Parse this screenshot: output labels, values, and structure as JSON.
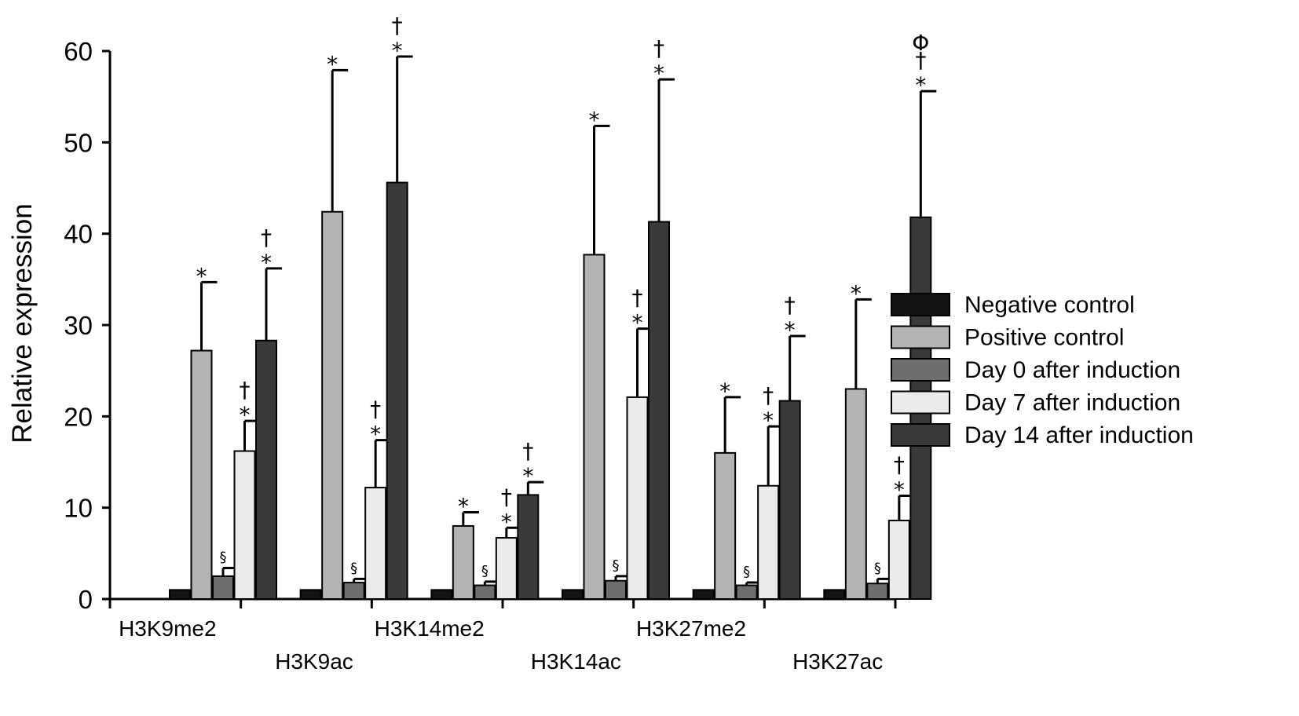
{
  "chart_data": {
    "type": "bar",
    "ylabel": "Relative expression",
    "ylim": [
      0,
      60
    ],
    "yticks": [
      "0",
      "10",
      "20",
      "30",
      "40",
      "50",
      "60"
    ],
    "grid": false,
    "legend_position": "right",
    "categories": [
      "H3K9me2",
      "H3K9ac",
      "H3K14me2",
      "H3K14ac",
      "H3K27me2",
      "H3K27ac"
    ],
    "colors": {
      "Negative control": "#141414",
      "Positive control": "#b4b4b4",
      "Day 0 after induction": "#6e6e6e",
      "Day 7 after induction": "#ebebeb",
      "Day 14 after induction": "#3a3a3a"
    },
    "series": [
      {
        "name": "Negative control",
        "values": [
          1,
          1,
          1,
          1,
          1,
          1
        ],
        "errors": [
          0,
          0,
          0,
          0,
          0,
          0
        ],
        "annotations": [
          [],
          [],
          [],
          [],
          [],
          []
        ]
      },
      {
        "name": "Positive control",
        "values": [
          27.2,
          42.4,
          8.0,
          37.7,
          16.0,
          23.0
        ],
        "errors": [
          7.5,
          15.5,
          1.5,
          14.1,
          6.1,
          9.8
        ],
        "annotations": [
          [
            "*"
          ],
          [
            "*"
          ],
          [
            "*"
          ],
          [
            "*"
          ],
          [
            "*"
          ],
          [
            "*"
          ]
        ]
      },
      {
        "name": "Day 0 after induction",
        "values": [
          2.5,
          1.8,
          1.5,
          2.0,
          1.5,
          1.7
        ],
        "errors": [
          0.9,
          0.4,
          0.4,
          0.5,
          0.3,
          0.5
        ],
        "annotations": [
          [
            "§"
          ],
          [
            "§"
          ],
          [
            "§"
          ],
          [
            "§"
          ],
          [
            "§"
          ],
          [
            "§"
          ]
        ]
      },
      {
        "name": "Day 7 after induction",
        "values": [
          16.2,
          12.2,
          6.7,
          22.1,
          12.4,
          8.6
        ],
        "errors": [
          3.3,
          5.2,
          1.1,
          7.5,
          6.5,
          2.7
        ],
        "annotations": [
          [
            "*",
            "†"
          ],
          [
            "*",
            "†"
          ],
          [
            "*",
            "†"
          ],
          [
            "*",
            "†"
          ],
          [
            "*",
            "†"
          ],
          [
            "*",
            "†"
          ]
        ]
      },
      {
        "name": "Day 14 after induction",
        "values": [
          28.3,
          45.6,
          11.4,
          41.3,
          21.7,
          41.8
        ],
        "errors": [
          7.9,
          13.8,
          1.4,
          15.6,
          7.1,
          13.8
        ],
        "annotations": [
          [
            "*",
            "†"
          ],
          [
            "*",
            "†"
          ],
          [
            "*",
            "†"
          ],
          [
            "*",
            "†"
          ],
          [
            "*",
            "†"
          ],
          [
            "*",
            "†",
            "Φ"
          ]
        ]
      }
    ]
  }
}
